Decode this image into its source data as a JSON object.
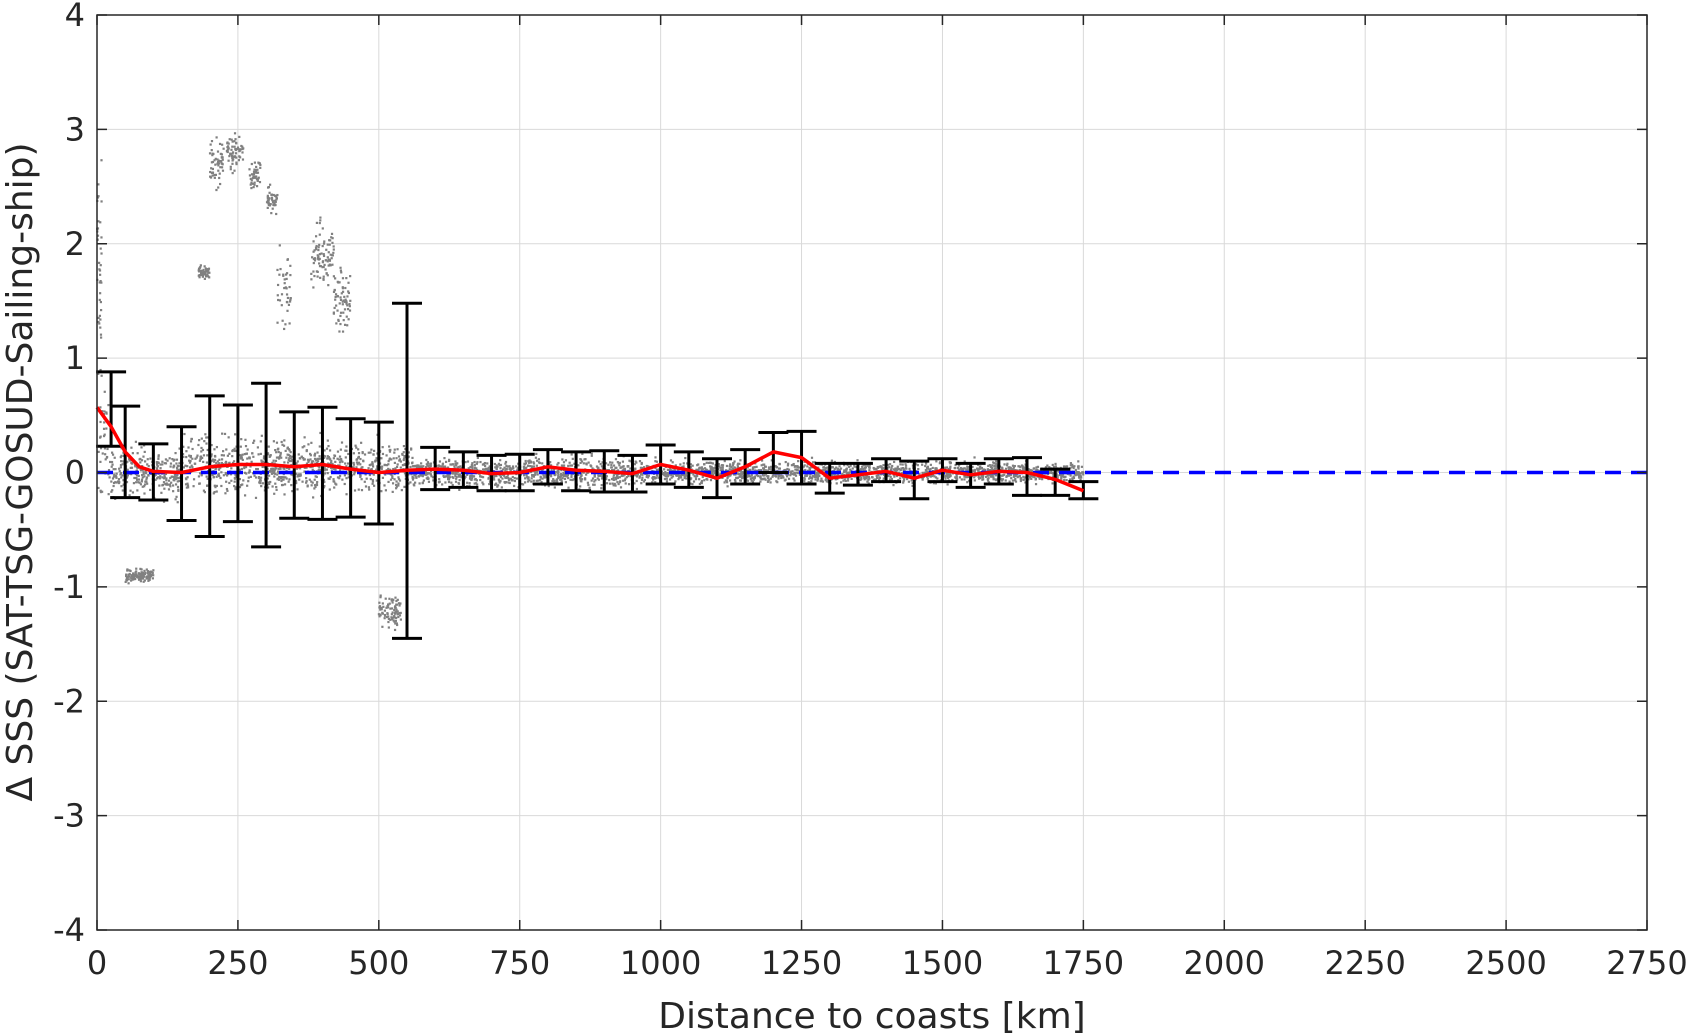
{
  "chart_data": {
    "type": "scatter",
    "title": "",
    "xlabel": "Distance to coasts [km]",
    "ylabel": "Δ SSS (SAT-TSG-GOSUD-Sailing-ship)",
    "xlim": [
      0,
      2750
    ],
    "ylim": [
      -4,
      4
    ],
    "xticks": [
      0,
      250,
      500,
      750,
      1000,
      1250,
      1500,
      1750,
      2000,
      2250,
      2500,
      2750
    ],
    "xtick_labels": [
      "0",
      "250",
      "500",
      "750",
      "1000",
      "1250",
      "1500",
      "1750",
      "2000",
      "2250",
      "2500",
      "2750"
    ],
    "yticks": [
      4,
      3,
      2,
      1,
      0,
      -1,
      -2,
      -3,
      -4
    ],
    "ytick_labels": [
      "4",
      "3",
      "2",
      "1",
      "0",
      "-1",
      "-2",
      "-3",
      "-4"
    ],
    "grid": true,
    "colors": {
      "scatter": "#808080",
      "mean_line": "#ff0000",
      "zero_line": "#0000ff",
      "error_bars": "#000000",
      "grid": "#d9d9d9",
      "axes": "#262626"
    },
    "zero_reference": {
      "y": 0,
      "style": "dashed",
      "x_range": [
        0,
        2750
      ]
    },
    "scatter_clusters": [
      {
        "x": [
          0,
          25
        ],
        "y_center": 0.25,
        "y_spread": 0.9
      },
      {
        "x": [
          0,
          8
        ],
        "y_center": 1.8,
        "y_spread": 1.4
      },
      {
        "x": [
          25,
          150
        ],
        "y_center": 0.0,
        "y_spread": 0.35
      },
      {
        "x": [
          150,
          330
        ],
        "y_center": 0.05,
        "y_spread": 0.4
      },
      {
        "x": [
          330,
          560
        ],
        "y_center": 0.05,
        "y_spread": 0.35
      },
      {
        "x": [
          560,
          1000
        ],
        "y_center": 0.0,
        "y_spread": 0.2
      },
      {
        "x": [
          1000,
          1750
        ],
        "y_center": 0.0,
        "y_spread": 0.15
      },
      {
        "x": [
          180,
          200
        ],
        "y_center": 1.75,
        "y_spread": 0.1
      },
      {
        "x": [
          200,
          225
        ],
        "y_center": 2.7,
        "y_spread": 0.35
      },
      {
        "x": [
          230,
          260
        ],
        "y_center": 2.8,
        "y_spread": 0.25
      },
      {
        "x": [
          270,
          290
        ],
        "y_center": 2.6,
        "y_spread": 0.3
      },
      {
        "x": [
          300,
          320
        ],
        "y_center": 2.4,
        "y_spread": 0.2
      },
      {
        "x": [
          320,
          345
        ],
        "y_center": 1.6,
        "y_spread": 0.6
      },
      {
        "x": [
          380,
          420
        ],
        "y_center": 1.9,
        "y_spread": 0.4
      },
      {
        "x": [
          420,
          450
        ],
        "y_center": 1.5,
        "y_spread": 0.5
      },
      {
        "x": [
          500,
          540
        ],
        "y_center": -1.2,
        "y_spread": 0.25
      },
      {
        "x": [
          50,
          100
        ],
        "y_center": -0.9,
        "y_spread": 0.1
      }
    ],
    "error_bars": [
      {
        "x": 25,
        "mean": 0.57,
        "lower": 0.23,
        "upper": 0.88
      },
      {
        "x": 50,
        "mean": 0.2,
        "lower": -0.22,
        "upper": 0.58
      },
      {
        "x": 100,
        "mean": 0.01,
        "lower": -0.24,
        "upper": 0.25
      },
      {
        "x": 150,
        "mean": 0.0,
        "lower": -0.42,
        "upper": 0.4
      },
      {
        "x": 200,
        "mean": 0.05,
        "lower": -0.56,
        "upper": 0.67
      },
      {
        "x": 250,
        "mean": 0.07,
        "lower": -0.43,
        "upper": 0.59
      },
      {
        "x": 300,
        "mean": 0.07,
        "lower": -0.65,
        "upper": 0.78
      },
      {
        "x": 350,
        "mean": 0.05,
        "lower": -0.4,
        "upper": 0.53
      },
      {
        "x": 400,
        "mean": 0.07,
        "lower": -0.41,
        "upper": 0.57
      },
      {
        "x": 450,
        "mean": 0.03,
        "lower": -0.39,
        "upper": 0.47
      },
      {
        "x": 500,
        "mean": 0.0,
        "lower": -0.45,
        "upper": 0.44
      },
      {
        "x": 550,
        "mean": 0.02,
        "lower": -1.45,
        "upper": 1.48
      },
      {
        "x": 600,
        "mean": 0.03,
        "lower": -0.15,
        "upper": 0.22
      },
      {
        "x": 650,
        "mean": 0.02,
        "lower": -0.13,
        "upper": 0.18
      },
      {
        "x": 700,
        "mean": -0.01,
        "lower": -0.16,
        "upper": 0.15
      },
      {
        "x": 750,
        "mean": 0.0,
        "lower": -0.16,
        "upper": 0.16
      },
      {
        "x": 800,
        "mean": 0.05,
        "lower": -0.1,
        "upper": 0.2
      },
      {
        "x": 850,
        "mean": 0.02,
        "lower": -0.16,
        "upper": 0.18
      },
      {
        "x": 900,
        "mean": 0.01,
        "lower": -0.17,
        "upper": 0.19
      },
      {
        "x": 950,
        "mean": -0.01,
        "lower": -0.17,
        "upper": 0.15
      },
      {
        "x": 1000,
        "mean": 0.07,
        "lower": -0.1,
        "upper": 0.24
      },
      {
        "x": 1050,
        "mean": 0.02,
        "lower": -0.13,
        "upper": 0.18
      },
      {
        "x": 1100,
        "mean": -0.05,
        "lower": -0.22,
        "upper": 0.12
      },
      {
        "x": 1150,
        "mean": 0.05,
        "lower": -0.1,
        "upper": 0.2
      },
      {
        "x": 1200,
        "mean": 0.18,
        "lower": 0.0,
        "upper": 0.35
      },
      {
        "x": 1250,
        "mean": 0.13,
        "lower": -0.1,
        "upper": 0.36
      },
      {
        "x": 1300,
        "mean": -0.05,
        "lower": -0.18,
        "upper": 0.08
      },
      {
        "x": 1350,
        "mean": -0.02,
        "lower": -0.11,
        "upper": 0.08
      },
      {
        "x": 1400,
        "mean": 0.01,
        "lower": -0.08,
        "upper": 0.12
      },
      {
        "x": 1450,
        "mean": -0.05,
        "lower": -0.23,
        "upper": 0.1
      },
      {
        "x": 1500,
        "mean": 0.02,
        "lower": -0.08,
        "upper": 0.12
      },
      {
        "x": 1550,
        "mean": -0.02,
        "lower": -0.13,
        "upper": 0.08
      },
      {
        "x": 1600,
        "mean": 0.01,
        "lower": -0.1,
        "upper": 0.12
      },
      {
        "x": 1650,
        "mean": 0.0,
        "lower": -0.2,
        "upper": 0.13
      },
      {
        "x": 1700,
        "mean": -0.06,
        "lower": -0.2,
        "upper": 0.03
      },
      {
        "x": 1750,
        "mean": -0.16,
        "lower": -0.23,
        "upper": -0.08
      }
    ],
    "mean_curve": {
      "x": [
        0,
        25,
        50,
        75,
        100,
        150,
        200,
        250,
        300,
        350,
        400,
        450,
        500,
        550,
        600,
        650,
        700,
        750,
        800,
        850,
        900,
        950,
        1000,
        1050,
        1100,
        1150,
        1200,
        1250,
        1300,
        1350,
        1400,
        1450,
        1500,
        1550,
        1600,
        1650,
        1700,
        1750
      ],
      "y": [
        0.57,
        0.4,
        0.18,
        0.05,
        0.01,
        0.0,
        0.05,
        0.07,
        0.07,
        0.05,
        0.07,
        0.03,
        0.0,
        0.02,
        0.03,
        0.02,
        -0.01,
        0.0,
        0.05,
        0.02,
        0.01,
        -0.01,
        0.07,
        0.02,
        -0.05,
        0.05,
        0.18,
        0.13,
        -0.05,
        -0.02,
        0.01,
        -0.05,
        0.02,
        -0.02,
        0.01,
        0.0,
        -0.06,
        -0.16
      ]
    }
  }
}
